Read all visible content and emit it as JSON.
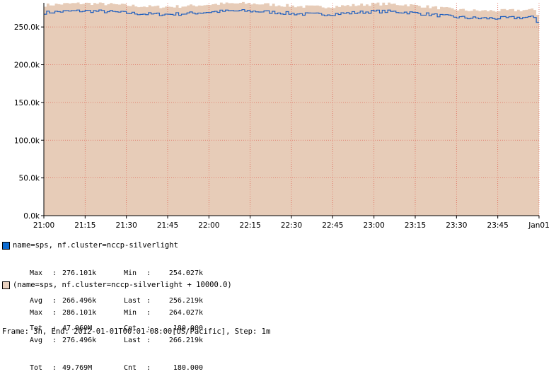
{
  "chart_data": {
    "type": "area",
    "x_labels": [
      "21:00",
      "21:15",
      "21:30",
      "21:45",
      "22:00",
      "22:15",
      "22:30",
      "22:45",
      "23:00",
      "23:15",
      "23:30",
      "23:45",
      "Jan01"
    ],
    "y_tick_labels": [
      "0.0k",
      "50.0k",
      "100.0k",
      "150.0k",
      "200.0k",
      "250.0k"
    ],
    "y_ticks": [
      0,
      50000,
      100000,
      150000,
      200000,
      250000
    ],
    "ylim": [
      0,
      282000
    ],
    "grid": true,
    "step_minutes": 1,
    "points": 180,
    "series": [
      {
        "name": "name=sps, nf.cluster=nccp-silverlight",
        "style": "line",
        "color": "#1f5fbf",
        "swatch_color": "#0b6bd1",
        "base_level": 266496,
        "min": 254027,
        "max": 276101,
        "last": 256219
      },
      {
        "name": "(name=sps, nf.cluster=nccp-silverlight + 10000.0)",
        "style": "area",
        "color": "#e7ccb8",
        "swatch_color": "#e9d2c0",
        "offset": 10000
      }
    ]
  },
  "legend": [
    {
      "name": "name=sps, nf.cluster=nccp-silverlight",
      "stats": {
        "max_label": "Max",
        "max": "276.101k",
        "min_label": "Min",
        "min": "254.027k",
        "avg_label": "Avg",
        "avg": "266.496k",
        "last_label": "Last",
        "last": "256.219k",
        "tot_label": "Tot",
        "tot": "47.969M",
        "cnt_label": "Cnt",
        "cnt": "180.000"
      }
    },
    {
      "name": "(name=sps, nf.cluster=nccp-silverlight + 10000.0)",
      "stats": {
        "max_label": "Max",
        "max": "286.101k",
        "min_label": "Min",
        "min": "264.027k",
        "avg_label": "Avg",
        "avg": "276.496k",
        "last_label": "Last",
        "last": "266.219k",
        "tot_label": "Tot",
        "tot": "49.769M",
        "cnt_label": "Cnt",
        "cnt": "180.000"
      }
    }
  ],
  "footer": "Frame: 3h, End: 2012-01-01T00:01-08:00[US/Pacific], Step: 1m"
}
